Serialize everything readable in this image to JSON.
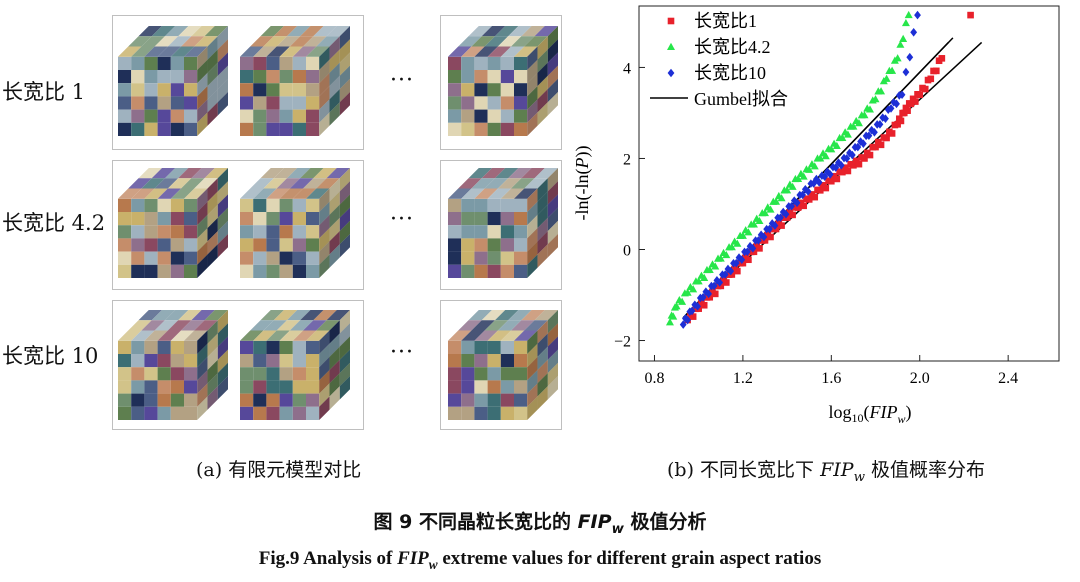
{
  "panel_a": {
    "rows": [
      {
        "label": "长宽比 1"
      },
      {
        "label": "长宽比 4.2"
      },
      {
        "label": "长宽比 10"
      }
    ],
    "ellipsis": "···",
    "caption": "(a)  有限元模型对比"
  },
  "panel_b": {
    "caption_prefix": "(b)  不同长宽比下 ",
    "caption_var": "FIP",
    "caption_sub": "w",
    "caption_suffix": " 极值概率分布"
  },
  "figure_caption_cn": {
    "prefix": "图 9  不同晶粒长宽比的 ",
    "var": "FIP",
    "sub": "w",
    "suffix": " 极值分析"
  },
  "figure_caption_en": {
    "prefix": "Fig.9 Analysis of ",
    "var": "FIP",
    "sub": "w",
    "suffix": " extreme values for different grain aspect ratios"
  },
  "colors": {
    "red": "#e8212b",
    "green": "#27e64a",
    "blue": "#1d2fd6",
    "fit": "#000000"
  },
  "chart_data": {
    "type": "scatter",
    "xlabel": "log10(FIPw)",
    "ylabel": "-ln(-ln(P))",
    "xlim": [
      0.73,
      2.63
    ],
    "ylim": [
      -2.45,
      5.35
    ],
    "xticks": [
      0.8,
      1.2,
      1.6,
      2.0,
      2.4
    ],
    "xtick_labels": [
      "0.8",
      "1.2",
      "1.6",
      "2.0",
      "2.4"
    ],
    "yticks": [
      -2,
      0,
      2,
      4
    ],
    "ytick_labels": [
      "−2",
      "0",
      "2",
      "4"
    ],
    "grid": false,
    "legend_position": "top-left",
    "series": [
      {
        "name": "长宽比1",
        "color": "#e8212b",
        "marker": "square",
        "x": [
          0.95,
          1.0,
          1.05,
          1.1,
          1.15,
          1.2,
          1.25,
          1.3,
          1.35,
          1.4,
          1.45,
          1.5,
          1.55,
          1.6,
          1.65,
          1.7,
          1.75,
          1.8,
          1.85,
          1.9,
          1.93,
          1.96,
          2.0,
          2.05,
          2.1,
          2.23
        ],
        "y": [
          -1.55,
          -1.3,
          -1.05,
          -0.8,
          -0.55,
          -0.3,
          -0.05,
          0.2,
          0.45,
          0.7,
          0.92,
          1.1,
          1.3,
          1.5,
          1.7,
          1.85,
          2.0,
          2.25,
          2.45,
          2.75,
          3.0,
          3.2,
          3.4,
          3.75,
          4.2,
          5.15
        ]
      },
      {
        "name": "长宽比4.2",
        "color": "#27e64a",
        "marker": "triangle",
        "x": [
          0.87,
          0.9,
          0.95,
          1.0,
          1.05,
          1.1,
          1.15,
          1.2,
          1.25,
          1.3,
          1.35,
          1.4,
          1.45,
          1.5,
          1.55,
          1.6,
          1.65,
          1.7,
          1.75,
          1.8,
          1.85,
          1.9,
          1.95
        ],
        "y": [
          -1.6,
          -1.25,
          -0.95,
          -0.7,
          -0.45,
          -0.2,
          0.05,
          0.3,
          0.55,
          0.8,
          1.05,
          1.3,
          1.55,
          1.75,
          2.0,
          2.2,
          2.45,
          2.7,
          2.95,
          3.3,
          3.75,
          4.2,
          5.15
        ]
      },
      {
        "name": "长宽比10",
        "color": "#1d2fd6",
        "marker": "diamond",
        "x": [
          0.93,
          0.97,
          1.02,
          1.07,
          1.12,
          1.17,
          1.22,
          1.27,
          1.32,
          1.37,
          1.42,
          1.47,
          1.52,
          1.57,
          1.62,
          1.67,
          1.72,
          1.77,
          1.82,
          1.87,
          1.92,
          1.99
        ],
        "y": [
          -1.65,
          -1.35,
          -1.05,
          -0.8,
          -0.55,
          -0.3,
          -0.05,
          0.2,
          0.45,
          0.7,
          0.95,
          1.2,
          1.45,
          1.6,
          1.8,
          2.0,
          2.25,
          2.5,
          2.75,
          3.1,
          3.4,
          5.15
        ]
      }
    ],
    "fit_lines": [
      {
        "name": "Gumbel拟合",
        "x": [
          0.93,
          2.15
        ],
        "y": [
          -1.5,
          4.65
        ]
      },
      {
        "name": "",
        "x": [
          0.93,
          2.13
        ],
        "y": [
          -1.5,
          4.55
        ]
      },
      {
        "name": "",
        "x": [
          0.93,
          2.28
        ],
        "y": [
          -1.5,
          4.55
        ]
      }
    ]
  }
}
